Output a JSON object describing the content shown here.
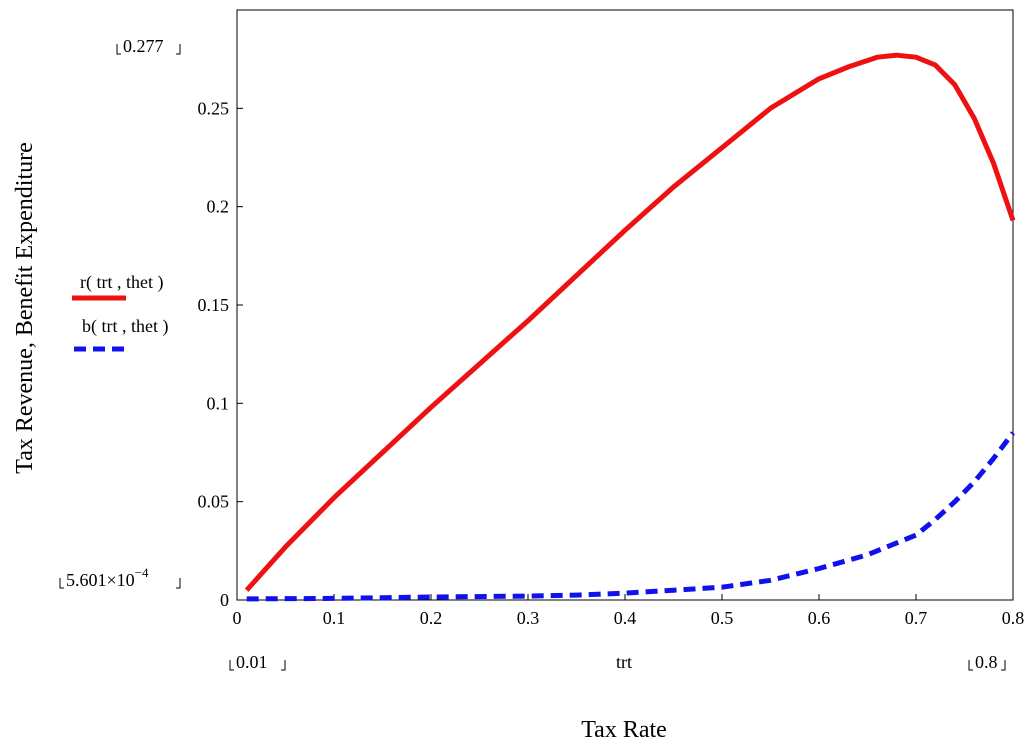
{
  "chart_data": {
    "type": "line",
    "xlabel": "Tax Rate",
    "ylabel": "Tax Revenue, Benefit Expenditure",
    "x_var_label": "trt",
    "xlim": [
      0,
      0.8
    ],
    "ylim": [
      0,
      0.3
    ],
    "x_ticks": [
      "0",
      "0.1",
      "0.2",
      "0.3",
      "0.4",
      "0.5",
      "0.6",
      "0.7",
      "0.8"
    ],
    "y_ticks": [
      "0",
      "0.05",
      "0.1",
      "0.15",
      "0.2",
      "0.25"
    ],
    "x_ticks_values": [
      0,
      0.1,
      0.2,
      0.3,
      0.4,
      0.5,
      0.6,
      0.7,
      0.8
    ],
    "y_ticks_values": [
      0,
      0.05,
      0.1,
      0.15,
      0.2,
      0.25
    ],
    "x_range_min_label": "0.01",
    "x_range_max_label": "0.8",
    "y_range_max_label": "0.277",
    "y_range_min_label": {
      "mantissa": "5.601×10",
      "exponent": "−4"
    },
    "grid": false,
    "legend_position": "left",
    "series": [
      {
        "name": "r( trt , thet )",
        "color": "#ee1111",
        "style": "solid",
        "x": [
          0.01,
          0.05,
          0.1,
          0.15,
          0.2,
          0.25,
          0.3,
          0.35,
          0.4,
          0.45,
          0.5,
          0.55,
          0.6,
          0.63,
          0.66,
          0.68,
          0.7,
          0.72,
          0.74,
          0.76,
          0.78,
          0.8
        ],
        "y": [
          0.005,
          0.027,
          0.052,
          0.075,
          0.098,
          0.12,
          0.142,
          0.165,
          0.188,
          0.21,
          0.23,
          0.25,
          0.265,
          0.271,
          0.276,
          0.277,
          0.276,
          0.272,
          0.262,
          0.245,
          0.222,
          0.193
        ]
      },
      {
        "name": "b( trt , thet )",
        "color": "#1111ee",
        "style": "dashed",
        "x": [
          0.01,
          0.1,
          0.2,
          0.3,
          0.35,
          0.4,
          0.45,
          0.5,
          0.55,
          0.6,
          0.65,
          0.7,
          0.72,
          0.74,
          0.76,
          0.78,
          0.8
        ],
        "y": [
          0.00056,
          0.0008,
          0.0015,
          0.002,
          0.0025,
          0.0035,
          0.005,
          0.0065,
          0.01,
          0.016,
          0.023,
          0.033,
          0.041,
          0.05,
          0.06,
          0.072,
          0.085
        ]
      }
    ]
  }
}
